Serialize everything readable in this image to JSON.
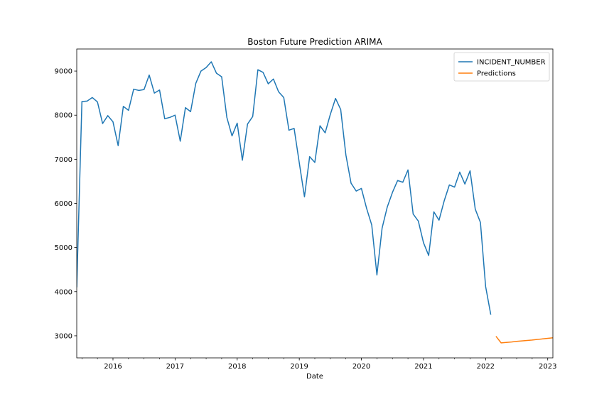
{
  "chart_data": {
    "type": "line",
    "title": "Boston Future Prediction ARIMA",
    "xlabel": "Date",
    "ylabel": "",
    "x_range": [
      "2015-06",
      "2023-02"
    ],
    "ylim": [
      2500,
      9500
    ],
    "y_ticks": [
      3000,
      4000,
      5000,
      6000,
      7000,
      8000,
      9000
    ],
    "x_ticks": [
      {
        "date": "2016-01",
        "label": "2016"
      },
      {
        "date": "2017-01",
        "label": "2017"
      },
      {
        "date": "2018-01",
        "label": "2018"
      },
      {
        "date": "2019-01",
        "label": "2019"
      },
      {
        "date": "2020-01",
        "label": "2020"
      },
      {
        "date": "2021-01",
        "label": "2021"
      },
      {
        "date": "2022-01",
        "label": "2022"
      },
      {
        "date": "2023-01",
        "label": "2023"
      }
    ],
    "grid": false,
    "legend_position": "top-right",
    "series": [
      {
        "name": "INCIDENT_NUMBER",
        "color": "#1f77b4",
        "x": [
          "2015-06",
          "2015-07",
          "2015-08",
          "2015-09",
          "2015-10",
          "2015-11",
          "2015-12",
          "2016-01",
          "2016-02",
          "2016-03",
          "2016-04",
          "2016-05",
          "2016-06",
          "2016-07",
          "2016-08",
          "2016-09",
          "2016-10",
          "2016-11",
          "2016-12",
          "2017-01",
          "2017-02",
          "2017-03",
          "2017-04",
          "2017-05",
          "2017-06",
          "2017-07",
          "2017-08",
          "2017-09",
          "2017-10",
          "2017-11",
          "2017-12",
          "2018-01",
          "2018-02",
          "2018-03",
          "2018-04",
          "2018-05",
          "2018-06",
          "2018-07",
          "2018-08",
          "2018-09",
          "2018-10",
          "2018-11",
          "2018-12",
          "2019-01",
          "2019-02",
          "2019-03",
          "2019-04",
          "2019-05",
          "2019-06",
          "2019-07",
          "2019-08",
          "2019-09",
          "2019-10",
          "2019-11",
          "2019-12",
          "2020-01",
          "2020-02",
          "2020-03",
          "2020-04",
          "2020-05",
          "2020-06",
          "2020-07",
          "2020-08",
          "2020-09",
          "2020-10",
          "2020-11",
          "2020-12",
          "2021-01",
          "2021-02",
          "2021-03",
          "2021-04",
          "2021-05",
          "2021-06",
          "2021-07",
          "2021-08",
          "2021-09",
          "2021-10",
          "2021-11",
          "2021-12",
          "2022-01",
          "2022-02"
        ],
        "y": [
          4100,
          8310,
          8320,
          8400,
          8300,
          7810,
          7990,
          7850,
          7310,
          8200,
          8110,
          8590,
          8560,
          8580,
          8910,
          8500,
          8570,
          7920,
          7950,
          8000,
          7410,
          8170,
          8080,
          8720,
          9000,
          9080,
          9210,
          8950,
          8870,
          7950,
          7530,
          7820,
          6980,
          7800,
          7970,
          9030,
          8970,
          8710,
          8820,
          8530,
          8400,
          7660,
          7700,
          6920,
          6150,
          7060,
          6930,
          7760,
          7600,
          8020,
          8380,
          8130,
          7100,
          6460,
          6280,
          6340,
          5890,
          5510,
          4380,
          5440,
          5920,
          6250,
          6520,
          6480,
          6760,
          5760,
          5600,
          5110,
          4820,
          5810,
          5620,
          6060,
          6420,
          6370,
          6710,
          6440,
          6740,
          5870,
          5570,
          4120,
          3480
        ]
      },
      {
        "name": "Predictions",
        "color": "#ff7f0e",
        "x": [
          "2022-03",
          "2022-04",
          "2022-05",
          "2022-06",
          "2022-07",
          "2022-08",
          "2022-09",
          "2022-10",
          "2022-11",
          "2022-12",
          "2023-01",
          "2023-02"
        ],
        "y": [
          2990,
          2840,
          2850,
          2860,
          2875,
          2885,
          2895,
          2905,
          2918,
          2930,
          2942,
          2955
        ]
      }
    ]
  }
}
